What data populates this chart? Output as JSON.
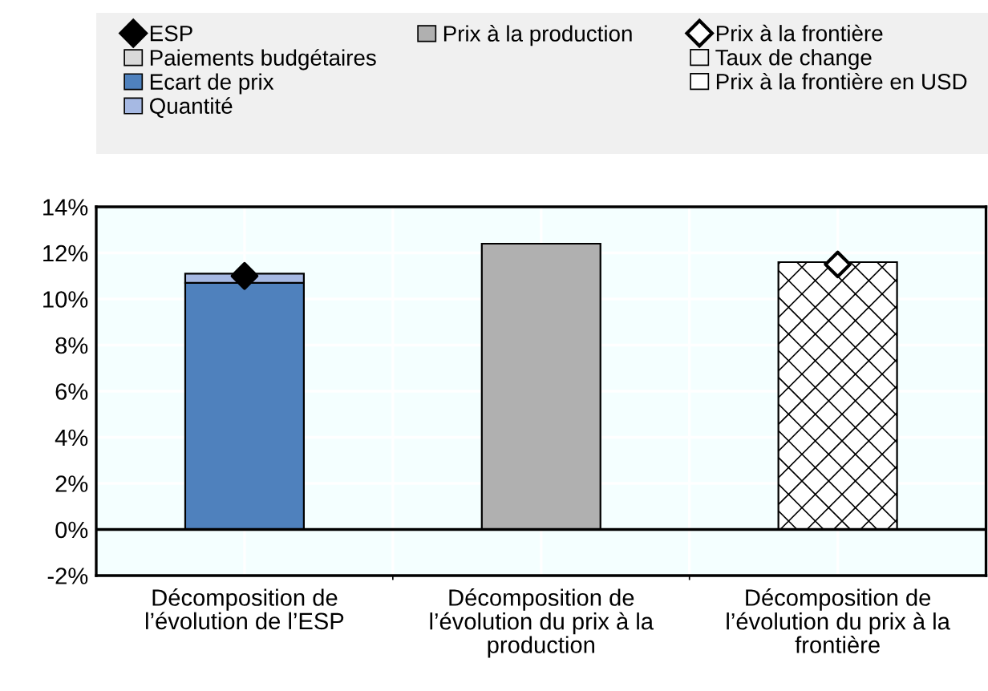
{
  "chart_data": {
    "type": "bar",
    "stacked": true,
    "categories": [
      "Décomposition de l’évolution de l’ESP",
      "Décomposition de l’évolution du prix à la production",
      "Décomposition de l’évolution du prix à la frontière"
    ],
    "series": [
      {
        "name": "ESP",
        "type": "scatter",
        "marker": "diamond",
        "color": "#000000",
        "values": [
          11.0,
          null,
          null
        ]
      },
      {
        "name": "Paiements budgétaires",
        "color": "#d9d9d9",
        "values": [
          0,
          null,
          null
        ]
      },
      {
        "name": "Ecart de prix",
        "color": "#4f81bd",
        "values": [
          10.7,
          null,
          null
        ]
      },
      {
        "name": "Quantité",
        "color": "#a6b9e3",
        "values": [
          0.4,
          null,
          null
        ]
      },
      {
        "name": "Prix à la production",
        "color": "#b0b0b0",
        "values": [
          null,
          12.4,
          null
        ]
      },
      {
        "name": "Prix à la frontière",
        "type": "scatter",
        "marker": "diamond",
        "color": "#ffffff",
        "values": [
          null,
          null,
          11.5
        ]
      },
      {
        "name": "Taux de change",
        "color": "#f2f2f2",
        "values": [
          null,
          null,
          null
        ]
      },
      {
        "name": "Prix à la frontière en USD",
        "color": "#ffffff",
        "values": [
          null,
          null,
          11.6
        ]
      }
    ],
    "ylim": [
      -2,
      14
    ],
    "yticks": [
      {
        "value": -2,
        "label": "-2%"
      },
      {
        "value": 0,
        "label": "0%"
      },
      {
        "value": 2,
        "label": "2%"
      },
      {
        "value": 4,
        "label": "4%"
      },
      {
        "value": 6,
        "label": "6%"
      },
      {
        "value": 8,
        "label": "8%"
      },
      {
        "value": 10,
        "label": "10%"
      },
      {
        "value": 12,
        "label": "12%"
      },
      {
        "value": 14,
        "label": "14%"
      }
    ],
    "grid": true,
    "legend": "top"
  }
}
